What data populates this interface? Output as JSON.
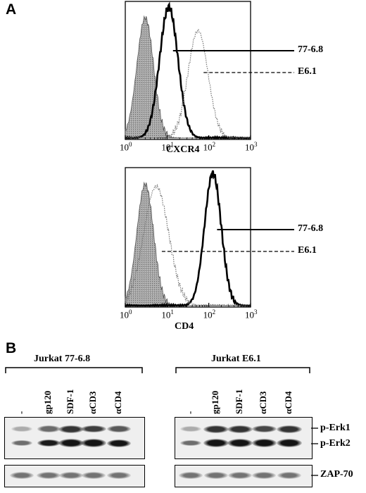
{
  "figure": {
    "panel_a": {
      "label": "A",
      "histograms": [
        {
          "xlabel": "CXCR4",
          "x_ticks": [
            "10^0",
            "10^1",
            "10^2",
            "10^3"
          ],
          "x_scale": "log",
          "x_range": [
            1,
            1000
          ],
          "legend": [
            {
              "label": "77-6.8",
              "style": "solid-thick"
            },
            {
              "label": "E6.1",
              "style": "dashed"
            }
          ],
          "curves": {
            "isotype_control": {
              "fill": "#9a9a9a",
              "peak_x": 3,
              "peak_y": 0.92
            },
            "line_77_6_8": {
              "style": "solid",
              "peak_x": 11,
              "peak_y": 1.0
            },
            "line_E6_1": {
              "style": "dotted",
              "peak_x": 55,
              "peak_y": 0.82
            }
          }
        },
        {
          "xlabel": "CD4",
          "x_ticks": [
            "10^0",
            "10^1",
            "10^2",
            "10^3"
          ],
          "x_scale": "log",
          "x_range": [
            1,
            1000
          ],
          "legend": [
            {
              "label": "77-6.8",
              "style": "solid-thick"
            },
            {
              "label": "E6.1",
              "style": "dashed"
            }
          ],
          "curves": {
            "isotype_control": {
              "fill": "#9a9a9a",
              "peak_x": 3,
              "peak_y": 0.92
            },
            "line_77_6_8": {
              "style": "solid",
              "peak_x": 125,
              "peak_y": 1.0
            },
            "line_E6_1": {
              "style": "dotted",
              "peak_x": 5.5,
              "peak_y": 0.9
            }
          }
        }
      ]
    },
    "panel_b": {
      "label": "B",
      "blots": [
        {
          "title": "Jurkat 77-6.8",
          "lanes": [
            "-",
            "gp120",
            "SDF-1",
            "αCD3",
            "αCD4"
          ],
          "p_erk_intensity": [
            0.35,
            0.7,
            1.0,
            0.95,
            0.8
          ],
          "zap70_intensity": [
            0.6,
            0.6,
            0.6,
            0.6,
            0.6
          ]
        },
        {
          "title": "Jurkat E6.1",
          "lanes": [
            "-",
            "gp120",
            "SDF-1",
            "αCD3",
            "αCD4"
          ],
          "p_erk_intensity": [
            0.35,
            1.0,
            1.0,
            0.9,
            1.0
          ],
          "zap70_intensity": [
            0.6,
            0.6,
            0.6,
            0.6,
            0.6
          ]
        }
      ],
      "band_labels": [
        "p-Erk1",
        "p-Erk2",
        "ZAP-70"
      ]
    }
  }
}
